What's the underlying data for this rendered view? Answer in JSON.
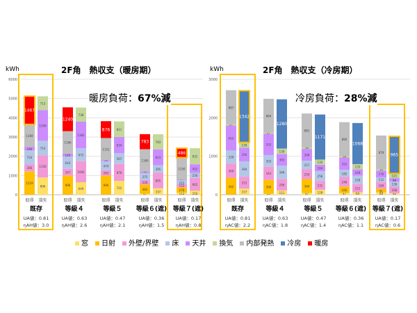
{
  "legend": [
    {
      "label": "窓",
      "color": "#FFE066"
    },
    {
      "label": "日射",
      "color": "#FFC000"
    },
    {
      "label": "外壁/界壁",
      "color": "#F29AD8"
    },
    {
      "label": "床",
      "color": "#B4C7E7"
    },
    {
      "label": "天井",
      "color": "#CC8CFF"
    },
    {
      "label": "換気",
      "color": "#C4D79B"
    },
    {
      "label": "内部発熱",
      "color": "#BFBFBF"
    },
    {
      "label": "冷房",
      "color": "#4F81BD"
    },
    {
      "label": "暖房",
      "color": "#FF0000"
    }
  ],
  "chart_data": [
    {
      "type": "bar",
      "stacked": true,
      "title": "2F角　熱収支（暖房期）",
      "ylabel": "kWh",
      "ylim": [
        0,
        6000
      ],
      "yticks": [
        0,
        1000,
        2000,
        3000,
        4000,
        5000,
        6000
      ],
      "annotation": {
        "prefix": "暖房負荷：",
        "value": "67%減"
      },
      "bar_labels": [
        "取得",
        "損失"
      ],
      "groups": [
        {
          "name": "既存",
          "ua": "UA値：0.81",
          "eta": "ηAH値：3.0",
          "highlight": true,
          "gain": {
            "窓": 0,
            "日射": 1219,
            "外壁/界壁": 366,
            "床": 724,
            "天井": 180,
            "内部発熱": 1169,
            "暖房": 1467
          },
          "loss": {
            "窓": 896,
            "外壁/界壁": 1156,
            "床": 753,
            "天井": 1599,
            "換気": 713
          }
        },
        {
          "name": "等級４",
          "ua": "UA値：0.63",
          "eta": "ηAH値：2.6",
          "gain": {
            "窓": 6,
            "日射": 996,
            "外壁/界壁": 347,
            "床": 643,
            "天井": 145,
            "内部発熱": 1166,
            "暖房": 1240
          },
          "loss": {
            "窓": 649,
            "外壁/界壁": 1092,
            "床": 672,
            "天井": 1382,
            "換気": 738
          }
        },
        {
          "name": "等級５",
          "ua": "UA値：0.47",
          "eta": "ηAH値：2.1",
          "gain": {
            "窓": 6,
            "日射": 996,
            "外壁/界壁": 265,
            "床": 474,
            "天井": 56,
            "内部発熱": 1151,
            "暖房": 876
          },
          "loss": {
            "窓": 722,
            "外壁/界壁": 878,
            "床": 567,
            "天井": 834,
            "換気": 811
          }
        },
        {
          "name": "等級６(遮)",
          "ua": "UA値：0.36",
          "eta": "ηAH値：1.5",
          "gain": {
            "窓": 47,
            "日射": 483,
            "外壁/界壁": 226,
            "床": 375,
            "天井": 76,
            "内部発熱": 1160,
            "暖房": 783
          },
          "loss": {
            "窓": 337,
            "外壁/界壁": 805,
            "床": 395,
            "天井": 823,
            "換気": 783
          }
        },
        {
          "name": "等級７(遮)",
          "ua": "UA値：0.17",
          "eta": "ηAH値：0.8",
          "highlight": true,
          "gain": {
            "窓": 112,
            "日射": 278,
            "外壁/界壁": 152,
            "床": 215,
            "天井": 24,
            "内部発熱": 1150,
            "暖房": 486
          },
          "loss": {
            "窓": 216,
            "外壁/界壁": 662,
            "床": 256,
            "天井": 452,
            "換気": 831
          }
        }
      ]
    },
    {
      "type": "bar",
      "stacked": true,
      "title": "2F角　熱収支（冷房期）",
      "ylabel": "kWh",
      "ylim": [
        0,
        3000
      ],
      "yticks": [
        0,
        1000,
        2000,
        3000
      ],
      "annotation": {
        "prefix": "冷房負荷：",
        "value": "28%減"
      },
      "bar_labels": [
        "取得",
        "損失"
      ],
      "groups": [
        {
          "name": "既存",
          "ua": "UA値：0.81",
          "eta": "ηAC値：2.2",
          "highlight": true,
          "gain": {
            "窓": 0,
            "日射": 442,
            "外壁/界壁": 369,
            "床": 339,
            "天井": 652,
            "換気": 27,
            "内部発熱": 887
          },
          "loss": {
            "窓": 157,
            "外壁/界壁": 315,
            "床": 394,
            "天井": 356,
            "換気": 139,
            "冷房": 1342
          }
        },
        {
          "name": "等級４",
          "ua": "UA値：0.63",
          "eta": "ηAC値：1.8",
          "gain": {
            "窓": 25,
            "日射": 360,
            "外壁/界壁": 343,
            "床": 303,
            "天井": 552,
            "換気": 27,
            "内部発熱": 884
          },
          "loss": {
            "窓": 111,
            "外壁/界壁": 299,
            "床": 348,
            "天井": 303,
            "換気": 139,
            "冷房": 1280
          }
        },
        {
          "name": "等級５",
          "ua": "UA値：0.47",
          "eta": "ηAC値：1.4",
          "gain": {
            "窓": 47,
            "日射": 360,
            "外壁/界壁": 259,
            "床": 217,
            "天井": 308,
            "換気": 39,
            "内部発熱": 881
          },
          "loss": {
            "窓": 128,
            "外壁/界壁": 231,
            "床": 256,
            "天井": 164,
            "換気": 135,
            "冷房": 1171
          }
        },
        {
          "name": "等級６(遮)",
          "ua": "UA値：0.36",
          "eta": "ηAC値：1.1",
          "gain": {
            "窓": 47,
            "日射": 166,
            "外壁/界壁": 248,
            "床": 185,
            "天井": 322,
            "換気": 38,
            "内部発熱": 880
          },
          "loss": {
            "窓": 64,
            "外壁/界壁": 212,
            "床": 218,
            "天井": 169,
            "換気": 133,
            "冷房": 1068
          }
        },
        {
          "name": "等級７(遮)",
          "ua": "UA値：0.17",
          "eta": "ηAC値：0.6",
          "highlight": true,
          "gain": {
            "窓": 64,
            "日射": 91,
            "外壁/界壁": 184,
            "床": 112,
            "天井": 176,
            "換気": 34,
            "内部発熱": 878
          },
          "loss": {
            "窓": 40,
            "外壁/界壁": 168,
            "床": 136,
            "天井": 88,
            "換気": 121,
            "冷房": 965
          }
        }
      ]
    }
  ]
}
